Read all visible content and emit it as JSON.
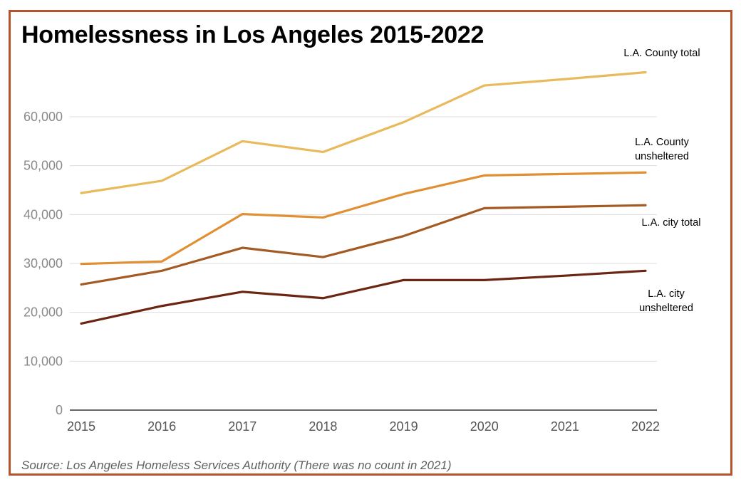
{
  "chart_data": {
    "type": "line",
    "title": "Homelessness in Los Angeles 2015-2022",
    "source": "Source: Los Angeles Homeless Services Authority (There was no count in 2021)",
    "x": [
      "2015",
      "2016",
      "2017",
      "2018",
      "2019",
      "2020",
      "2021",
      "2022"
    ],
    "ylim": [
      0,
      70000
    ],
    "yticks": [
      "0",
      "10,000",
      "20,000",
      "30,000",
      "40,000",
      "50,000",
      "60,000"
    ],
    "grid": "horizontal",
    "series": [
      {
        "name": "L.A. County total",
        "label_lines": [
          "L.A. County total"
        ],
        "color": "#e8ba5b",
        "values": [
          44400,
          46900,
          55000,
          52800,
          58900,
          66400,
          67700,
          69100
        ]
      },
      {
        "name": "L.A. County unsheltered",
        "label_lines": [
          "L.A. County",
          "unsheltered"
        ],
        "color": "#e08f32",
        "values": [
          29900,
          30400,
          40100,
          39400,
          44200,
          48000,
          48300,
          48600
        ]
      },
      {
        "name": "L.A. city total",
        "label_lines": [
          "L.A.  city total"
        ],
        "color": "#a45a23",
        "values": [
          25700,
          28500,
          33200,
          31300,
          35600,
          41300,
          41600,
          41900
        ]
      },
      {
        "name": "L.A. city unsheltered",
        "label_lines": [
          "L.A. city",
          "unsheltered"
        ],
        "color": "#6b2512",
        "values": [
          17700,
          21300,
          24200,
          22900,
          26600,
          26600,
          27500,
          28500
        ]
      }
    ]
  }
}
